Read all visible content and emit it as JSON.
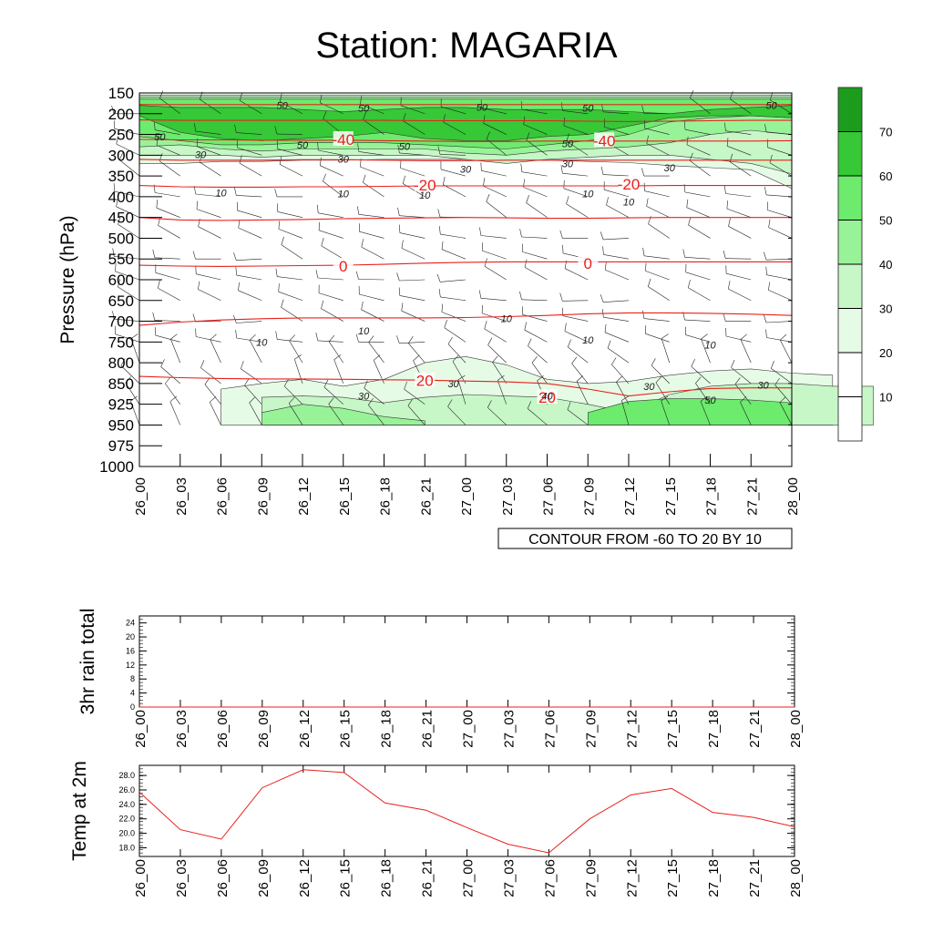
{
  "page": {
    "title": "Station: MAGARIA"
  },
  "colors": {
    "axis": "#000000",
    "temperature_contour": "#e8211c",
    "wind_speed_contour": "#1a1a1a",
    "barb": "#222222",
    "temp_line": "#e8211c",
    "fill_levels": [
      "#ffffff",
      "#ffffff",
      "#e6fbe6",
      "#c7f6c7",
      "#98f398",
      "#6ceb6c",
      "#36c836",
      "#1c9c1c"
    ]
  },
  "chart_data": [
    {
      "id": "cross_section",
      "type": "heatmap",
      "title": "Station: MAGARIA",
      "xlabel": "",
      "ylabel": "Pressure (hPa)",
      "x_ticks": [
        "26_00",
        "26_03",
        "26_06",
        "26_09",
        "26_12",
        "26_15",
        "26_18",
        "26_21",
        "27_00",
        "27_03",
        "27_06",
        "27_09",
        "27_12",
        "27_15",
        "27_18",
        "27_21",
        "28_00"
      ],
      "y_ticks": [
        150,
        200,
        250,
        300,
        350,
        400,
        450,
        500,
        550,
        600,
        650,
        700,
        750,
        800,
        850,
        925,
        950,
        975,
        1000
      ],
      "ylim": [
        150,
        1000
      ],
      "annotation": "CONTOUR FROM -60 TO 20 BY 10",
      "colorbar": {
        "levels": [
          10,
          20,
          30,
          40,
          50,
          60,
          70
        ],
        "labels": [
          "10",
          "20",
          "30",
          "40",
          "50",
          "60",
          "70"
        ]
      },
      "shaded_field_wind_speed": {
        "description_levels": [
          20,
          30,
          40,
          50,
          60,
          70
        ],
        "bands": [
          {
            "level": 20,
            "top_hPa": [
              150,
              150,
              150,
              150,
              150,
              150,
              150,
              150,
              150,
              150,
              150,
              150,
              150,
              150,
              150,
              150,
              150
            ],
            "bottom_hPa": [
              320,
              320,
              315,
              315,
              312,
              312,
              310,
              310,
              310,
              310,
              312,
              315,
              318,
              325,
              330,
              335,
              380
            ]
          },
          {
            "level": 30,
            "top_hPa": [
              155,
              155,
              155,
              155,
              155,
              155,
              155,
              155,
              155,
              155,
              155,
              155,
              155,
              155,
              155,
              155,
              155
            ],
            "bottom_hPa": [
              300,
              300,
              300,
              305,
              300,
              300,
              300,
              300,
              310,
              320,
              310,
              305,
              300,
              300,
              310,
              320,
              345
            ]
          },
          {
            "level": 40,
            "top_hPa": [
              160,
              160,
              160,
              160,
              160,
              160,
              160,
              160,
              160,
              160,
              160,
              160,
              160,
              160,
              160,
              160,
              160
            ],
            "bottom_hPa": [
              280,
              275,
              285,
              290,
              285,
              285,
              285,
              285,
              295,
              300,
              290,
              285,
              280,
              270,
              250,
              240,
              250
            ]
          },
          {
            "level": 50,
            "top_hPa": [
              165,
              165,
              165,
              165,
              165,
              165,
              165,
              165,
              165,
              165,
              165,
              165,
              165,
              165,
              165,
              165,
              165
            ],
            "bottom_hPa": [
              255,
              265,
              275,
              275,
              270,
              270,
              270,
              275,
              280,
              285,
              275,
              265,
              250,
              220,
              210,
              205,
              210
            ]
          },
          {
            "level": 60,
            "top_hPa": [
              180,
              185,
              185,
              185,
              190,
              195,
              190,
              185,
              185,
              190,
              190,
              190,
              195,
              200,
              190,
              185,
              180
            ],
            "bottom_hPa": [
              205,
              245,
              260,
              265,
              260,
              255,
              245,
              260,
              265,
              265,
              255,
              250,
              230,
              210,
              205,
              205,
              210
            ]
          }
        ],
        "low_level_bands": [
          {
            "level": 20,
            "x_from": "26_06",
            "x_to": "28_00",
            "top_hPa": [
              870,
              850,
              840,
              860,
              840,
              800,
              785,
              805,
              840,
              850,
              845,
              830,
              820,
              815,
              825,
              830
            ],
            "bottom_hPa": 950
          },
          {
            "level": 30,
            "x_from": "26_09",
            "x_to": "28_00",
            "top_hPa": [
              900,
              895,
              900,
              920,
              900,
              890,
              895,
              900,
              925,
              935,
              890,
              860,
              850,
              850,
              860,
              860
            ],
            "bottom_hPa": 950
          },
          {
            "level": 40,
            "x_from": "26_09",
            "x_to": "26_21",
            "top_hPa": [
              935,
              925,
              930,
              940,
              945
            ],
            "bottom_hPa": 950
          },
          {
            "level": 50,
            "x_from": "27_09",
            "x_to": "28_00",
            "top_hPa": [
              935,
              915,
              905,
              905,
              910,
              920
            ],
            "bottom_hPa": 950
          }
        ]
      },
      "temperature_contours": [
        {
          "value": -50,
          "label": "",
          "hPa": [
            178,
            178,
            178,
            178,
            178,
            178,
            178,
            178,
            178,
            178,
            178,
            178,
            178,
            178,
            178,
            178,
            178
          ]
        },
        {
          "value": -50,
          "label": "",
          "hPa": [
            215,
            216,
            216,
            216,
            216,
            216,
            216,
            217,
            217,
            217,
            217,
            218,
            219,
            218,
            217,
            216,
            216
          ]
        },
        {
          "value": -40,
          "label": "-40",
          "hPa": [
            262,
            263,
            263,
            264,
            264,
            264,
            265,
            266,
            267,
            267,
            266,
            266,
            266,
            266,
            266,
            266,
            265
          ]
        },
        {
          "value": -30,
          "label": "",
          "hPa": [
            310,
            312,
            312,
            312,
            311,
            311,
            312,
            313,
            313,
            312,
            312,
            312,
            312,
            312,
            312,
            312,
            312
          ]
        },
        {
          "value": -20,
          "label": "-20",
          "hPa": [
            373,
            376,
            377,
            377,
            376,
            376,
            375,
            374,
            374,
            374,
            374,
            374,
            374,
            373,
            373,
            373,
            373
          ]
        },
        {
          "value": -10,
          "label": "",
          "hPa": [
            450,
            456,
            457,
            456,
            455,
            453,
            452,
            451,
            450,
            451,
            452,
            452,
            451,
            450,
            450,
            450,
            450
          ]
        },
        {
          "value": 0,
          "label": "0",
          "hPa": [
            565,
            567,
            568,
            567,
            566,
            565,
            563,
            560,
            558,
            557,
            557,
            557,
            557,
            557,
            557,
            557,
            557
          ]
        },
        {
          "value": 10,
          "label": "",
          "hPa": [
            710,
            702,
            697,
            694,
            692,
            692,
            692,
            692,
            691,
            689,
            686,
            682,
            680,
            680,
            681,
            683,
            686
          ]
        },
        {
          "value": 20,
          "label": "20",
          "hPa": [
            833,
            836,
            838,
            839,
            839,
            840,
            841,
            842,
            844,
            846,
            850,
            870,
            895,
            880,
            868,
            866,
            866
          ]
        }
      ],
      "temperature_contour_labels": [
        {
          "text": "-40",
          "x": "26_15",
          "hPa": 262
        },
        {
          "text": "-40",
          "x": "27_09",
          "hPa": 265,
          "x_offset_steps": 0.4
        },
        {
          "text": "-20",
          "x": "26_21",
          "hPa": 372
        },
        {
          "text": "-20",
          "x": "27_12",
          "hPa": 370
        },
        {
          "text": "0",
          "x": "26_15",
          "hPa": 567
        },
        {
          "text": "0",
          "x": "27_09",
          "hPa": 560
        },
        {
          "text": "20",
          "x": "26_21",
          "hPa": 843
        },
        {
          "text": "20",
          "x": "27_06",
          "hPa": 900
        }
      ],
      "wind_speed_labels": [
        {
          "text": "50",
          "x": "26_12",
          "hPa": 180,
          "x_offset_steps": -0.5
        },
        {
          "text": "50",
          "x": "26_18",
          "hPa": 186,
          "x_offset_steps": -0.5
        },
        {
          "text": "50",
          "x": "27_03",
          "hPa": 184,
          "x_offset_steps": -0.6
        },
        {
          "text": "50",
          "x": "27_09",
          "hPa": 186
        },
        {
          "text": "50",
          "x": "28_00",
          "hPa": 180,
          "x_offset_steps": -0.5
        },
        {
          "text": "50",
          "x": "26_00",
          "hPa": 255,
          "x_offset_steps": 0.5
        },
        {
          "text": "50",
          "x": "26_12",
          "hPa": 275
        },
        {
          "text": "50",
          "x": "26_21",
          "hPa": 278,
          "x_offset_steps": -0.5
        },
        {
          "text": "50",
          "x": "27_06",
          "hPa": 272,
          "x_offset_steps": 0.5
        },
        {
          "text": "30",
          "x": "26_03",
          "hPa": 298,
          "x_offset_steps": 0.5
        },
        {
          "text": "30",
          "x": "26_15",
          "hPa": 309
        },
        {
          "text": "30",
          "x": "27_00",
          "hPa": 333
        },
        {
          "text": "30",
          "x": "27_09",
          "hPa": 320,
          "x_offset_steps": -0.5
        },
        {
          "text": "30",
          "x": "27_15",
          "hPa": 330
        },
        {
          "text": "10",
          "x": "26_06",
          "hPa": 390
        },
        {
          "text": "10",
          "x": "26_15",
          "hPa": 393
        },
        {
          "text": "10",
          "x": "26_21",
          "hPa": 396
        },
        {
          "text": "10",
          "x": "27_09",
          "hPa": 393
        },
        {
          "text": "10",
          "x": "27_12",
          "hPa": 412
        },
        {
          "text": "10",
          "x": "26_18",
          "hPa": 723,
          "x_offset_steps": -0.5
        },
        {
          "text": "10",
          "x": "27_03",
          "hPa": 693
        },
        {
          "text": "10",
          "x": "26_09",
          "hPa": 750
        },
        {
          "text": "10",
          "x": "27_09",
          "hPa": 745
        },
        {
          "text": "10",
          "x": "27_18",
          "hPa": 757
        },
        {
          "text": "30",
          "x": "26_15",
          "hPa": 895,
          "x_offset_steps": 0.5
        },
        {
          "text": "30",
          "x": "26_21",
          "hPa": 850,
          "x_offset_steps": 0.7
        },
        {
          "text": "30",
          "x": "27_12",
          "hPa": 860,
          "x_offset_steps": 0.5
        },
        {
          "text": "30",
          "x": "28_00",
          "hPa": 855,
          "x_offset_steps": -0.7
        },
        {
          "text": "50",
          "x": "27_18",
          "hPa": 910
        },
        {
          "text": "40",
          "x": "27_06",
          "hPa": 895
        }
      ]
    },
    {
      "id": "rain",
      "type": "line",
      "title": "",
      "xlabel": "",
      "ylabel": "3hr rain total",
      "categories": [
        "26_00",
        "26_03",
        "26_06",
        "26_09",
        "26_12",
        "26_15",
        "26_18",
        "26_21",
        "27_00",
        "27_03",
        "27_06",
        "27_09",
        "27_12",
        "27_15",
        "27_18",
        "27_21",
        "28_00"
      ],
      "y_ticks": [
        "0",
        "4",
        "8",
        "12",
        "16",
        "20",
        "24"
      ],
      "ylim": [
        0,
        26
      ],
      "series": [
        {
          "name": "3hr rain total",
          "values": [
            0,
            0,
            0,
            0,
            0,
            0,
            0,
            0,
            0,
            0,
            0,
            0,
            0,
            0,
            0,
            0,
            0
          ]
        }
      ]
    },
    {
      "id": "temp2m",
      "type": "line",
      "title": "",
      "xlabel": "",
      "ylabel": "Temp at 2m",
      "categories": [
        "26_00",
        "26_03",
        "26_06",
        "26_09",
        "26_12",
        "26_15",
        "26_18",
        "26_21",
        "27_00",
        "27_03",
        "27_06",
        "27_09",
        "27_12",
        "27_15",
        "27_18",
        "27_21",
        "28_00"
      ],
      "y_ticks": [
        "18.0",
        "20.0",
        "22.0",
        "24.0",
        "26.0",
        "28.0"
      ],
      "ylim": [
        16.8,
        29.4
      ],
      "series": [
        {
          "name": "Temp at 2m",
          "values": [
            25.7,
            20.5,
            19.2,
            26.3,
            28.8,
            28.4,
            24.2,
            23.2,
            20.8,
            18.5,
            17.3,
            22.0,
            25.3,
            26.2,
            22.9,
            22.2,
            20.9
          ]
        }
      ]
    }
  ]
}
